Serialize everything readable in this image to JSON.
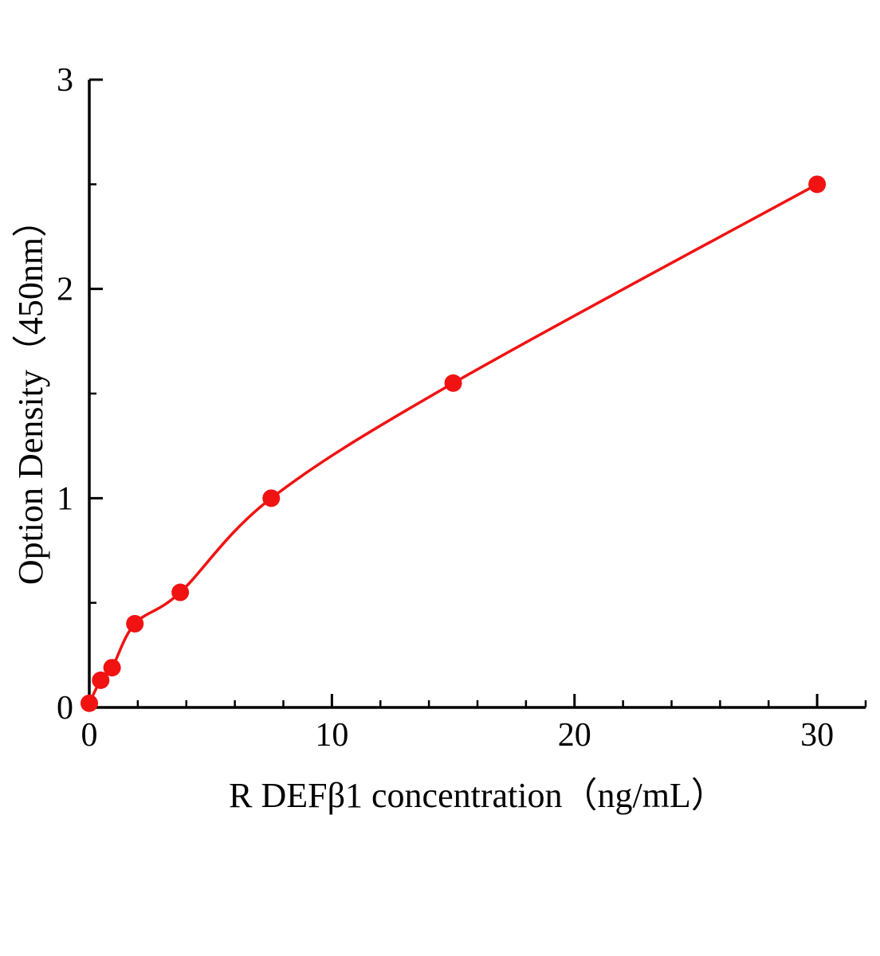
{
  "figure": {
    "background_color": "#ffffff",
    "axis_color": "#000000",
    "accent_color": "#f11212"
  },
  "chart_data": {
    "type": "scatter",
    "title": "",
    "xlabel": "R DEFβ1 concentration（ng/mL）",
    "ylabel": "Option Density（450nm）",
    "xlim": [
      0,
      32
    ],
    "ylim": [
      0,
      3
    ],
    "x_major_ticks": [
      0,
      10,
      20,
      30
    ],
    "x_minor_step": 2,
    "y_major_ticks": [
      0,
      1,
      2,
      3
    ],
    "y_minor_step": 0.5,
    "grid": false,
    "legend": false,
    "curve": "smooth standard curve through points, starting at origin",
    "curve_color": "#f11212",
    "point_color": "#f11212",
    "points": [
      {
        "x": 0,
        "y": 0.02
      },
      {
        "x": 0.47,
        "y": 0.13
      },
      {
        "x": 0.94,
        "y": 0.19
      },
      {
        "x": 1.88,
        "y": 0.4
      },
      {
        "x": 3.75,
        "y": 0.55
      },
      {
        "x": 7.5,
        "y": 1.0
      },
      {
        "x": 15,
        "y": 1.55
      },
      {
        "x": 30,
        "y": 2.5
      }
    ]
  }
}
